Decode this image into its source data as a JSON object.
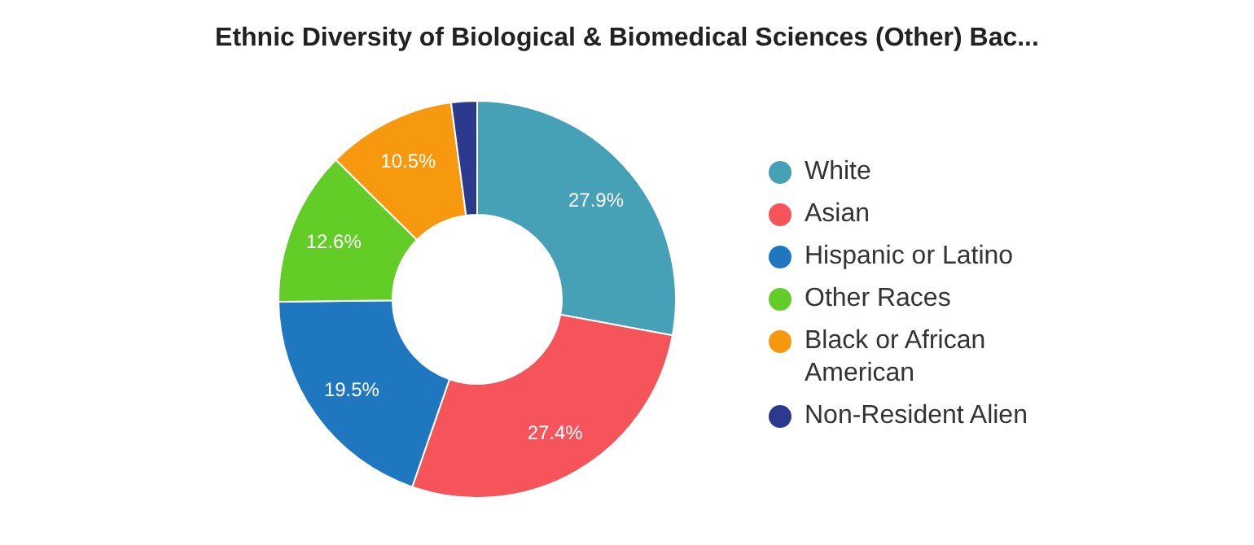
{
  "chart_data": {
    "type": "donut",
    "title": "Ethnic Diversity of Biological & Biomedical Sciences (Other) Bac...",
    "categories": [
      "White",
      "Asian",
      "Hispanic or Latino",
      "Other Races",
      "Black or African American",
      "Non-Resident Alien"
    ],
    "values": [
      27.9,
      27.4,
      19.5,
      12.6,
      10.5,
      2.1
    ],
    "colors": [
      "#46a0b6",
      "#f5545a",
      "#1f77bf",
      "#62cd26",
      "#f7990f",
      "#2b3a8c"
    ],
    "value_labels": [
      "27.9%",
      "27.4%",
      "19.5%",
      "12.6%",
      "10.5%",
      null
    ],
    "legend": "right"
  }
}
